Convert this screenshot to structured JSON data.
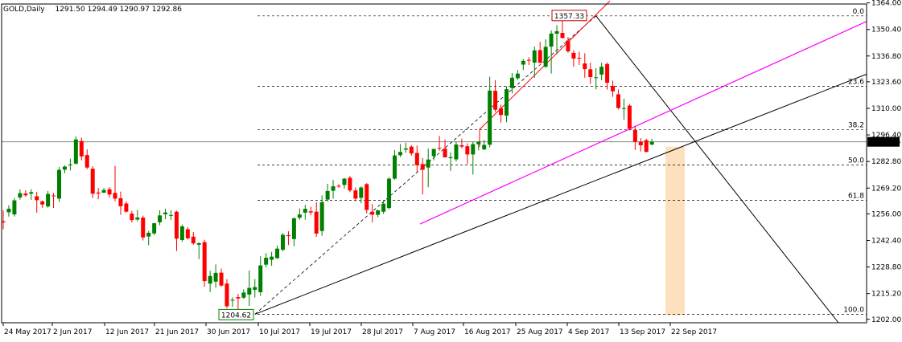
{
  "header": {
    "symbol": "GOLD,Daily",
    "ohlc": "1291.50 1294.49 1290.97 1292.86"
  },
  "colors": {
    "bull": "#008000",
    "bear": "#ff0000",
    "axis": "#000000",
    "grid": "#000000",
    "current_price_line": "#808080",
    "fib_channel": "#ff00ff",
    "trend_line": "#000000",
    "zone": "#fde0bd",
    "low_tag": "#008000",
    "high_tag": "#c00000"
  },
  "chart_data": {
    "type": "candlestick",
    "title": "GOLD,Daily",
    "ylim": [
      1198,
      1364
    ],
    "y_ticks": [
      "1364.00",
      "1350.40",
      "1336.80",
      "1323.60",
      "1310.00",
      "1296.40",
      "1282.80",
      "1269.20",
      "1256.00",
      "1242.40",
      "1228.80",
      "1215.20",
      "1202.00"
    ],
    "x_ticks": [
      "24 May 2017",
      "2 Jun 2017",
      "12 Jun 2017",
      "21 Jun 2017",
      "30 Jun 2017",
      "10 Jul 2017",
      "19 Jul 2017",
      "28 Jul 2017",
      "7 Aug 2017",
      "16 Aug 2017",
      "25 Aug 2017",
      "4 Sep 2017",
      "13 Sep 2017",
      "22 Sep 2017"
    ],
    "last_price": "1292.86",
    "swing_low": "1204.62",
    "swing_high": "1357.33",
    "fibonacci": {
      "levels": [
        {
          "label": "0.0",
          "price": 1357.33
        },
        {
          "label": "23.6",
          "price": 1321.29
        },
        {
          "label": "38.2",
          "price": 1299.03
        },
        {
          "label": "50.0",
          "price": 1280.98
        },
        {
          "label": "61.8",
          "price": 1262.93
        },
        {
          "label": "100.0",
          "price": 1204.62
        }
      ]
    },
    "candles": [
      {
        "o": 1252.2,
        "h": 1257.8,
        "l": 1248.1,
        "c": 1251.6
      },
      {
        "o": 1256.8,
        "h": 1260.4,
        "l": 1254.6,
        "c": 1258.6
      },
      {
        "o": 1255.7,
        "h": 1264.1,
        "l": 1254.6,
        "c": 1262.9
      },
      {
        "o": 1264.4,
        "h": 1268.5,
        "l": 1263.3,
        "c": 1266.6
      },
      {
        "o": 1266.4,
        "h": 1268.1,
        "l": 1264.7,
        "c": 1265.5
      },
      {
        "o": 1266.3,
        "h": 1268.6,
        "l": 1263.2,
        "c": 1267.1
      },
      {
        "o": 1265.0,
        "h": 1267.3,
        "l": 1256.6,
        "c": 1263.0
      },
      {
        "o": 1262.4,
        "h": 1262.9,
        "l": 1259.1,
        "c": 1260.8
      },
      {
        "o": 1259.8,
        "h": 1267.7,
        "l": 1259.2,
        "c": 1266.2
      },
      {
        "o": 1265.4,
        "h": 1266.7,
        "l": 1259.0,
        "c": 1265.2
      },
      {
        "o": 1263.8,
        "h": 1280.0,
        "l": 1262.0,
        "c": 1278.5
      },
      {
        "o": 1278.6,
        "h": 1280.8,
        "l": 1276.8,
        "c": 1280.2
      },
      {
        "o": 1280.8,
        "h": 1284.3,
        "l": 1278.2,
        "c": 1281.3
      },
      {
        "o": 1281.7,
        "h": 1295.6,
        "l": 1281.3,
        "c": 1294.1
      },
      {
        "o": 1293.3,
        "h": 1295.0,
        "l": 1283.4,
        "c": 1285.4
      },
      {
        "o": 1286.1,
        "h": 1289.1,
        "l": 1278.9,
        "c": 1279.7
      },
      {
        "o": 1279.1,
        "h": 1280.4,
        "l": 1264.1,
        "c": 1266.3
      },
      {
        "o": 1266.9,
        "h": 1269.2,
        "l": 1263.5,
        "c": 1266.4
      },
      {
        "o": 1266.8,
        "h": 1269.3,
        "l": 1266.8,
        "c": 1268.2
      },
      {
        "o": 1268.6,
        "h": 1269.7,
        "l": 1264.3,
        "c": 1265.9
      },
      {
        "o": 1266.7,
        "h": 1280.6,
        "l": 1262.4,
        "c": 1263.8
      },
      {
        "o": 1264.0,
        "h": 1267.4,
        "l": 1255.5,
        "c": 1259.9
      },
      {
        "o": 1261.3,
        "h": 1262.4,
        "l": 1256.7,
        "c": 1257.1
      },
      {
        "o": 1256.1,
        "h": 1257.5,
        "l": 1251.6,
        "c": 1252.8
      },
      {
        "o": 1253.1,
        "h": 1258.0,
        "l": 1252.2,
        "c": 1254.1
      },
      {
        "o": 1254.1,
        "h": 1255.1,
        "l": 1242.4,
        "c": 1243.9
      },
      {
        "o": 1244.4,
        "h": 1247.3,
        "l": 1239.9,
        "c": 1246.3
      },
      {
        "o": 1246.0,
        "h": 1251.4,
        "l": 1245.1,
        "c": 1251.2
      },
      {
        "o": 1251.7,
        "h": 1257.8,
        "l": 1250.2,
        "c": 1255.2
      },
      {
        "o": 1255.8,
        "h": 1258.6,
        "l": 1253.3,
        "c": 1256.7
      },
      {
        "o": 1255.1,
        "h": 1257.9,
        "l": 1252.9,
        "c": 1255.4
      },
      {
        "o": 1257.1,
        "h": 1257.6,
        "l": 1237.0,
        "c": 1243.3
      },
      {
        "o": 1242.6,
        "h": 1250.5,
        "l": 1241.7,
        "c": 1249.6
      },
      {
        "o": 1248.1,
        "h": 1249.2,
        "l": 1242.9,
        "c": 1243.5
      },
      {
        "o": 1244.3,
        "h": 1246.7,
        "l": 1240.2,
        "c": 1240.9
      },
      {
        "o": 1240.2,
        "h": 1241.4,
        "l": 1232.8,
        "c": 1241.0
      },
      {
        "o": 1241.5,
        "h": 1242.7,
        "l": 1218.7,
        "c": 1221.6
      },
      {
        "o": 1220.3,
        "h": 1226.9,
        "l": 1215.9,
        "c": 1224.2
      },
      {
        "o": 1221.3,
        "h": 1230.1,
        "l": 1218.2,
        "c": 1225.8
      },
      {
        "o": 1225.9,
        "h": 1228.0,
        "l": 1218.7,
        "c": 1219.3
      },
      {
        "o": 1220.3,
        "h": 1222.6,
        "l": 1207.6,
        "c": 1208.7
      },
      {
        "o": 1211.6,
        "h": 1213.3,
        "l": 1208.4,
        "c": 1212.0
      },
      {
        "o": 1213.4,
        "h": 1215.0,
        "l": 1204.6,
        "c": 1212.7
      },
      {
        "o": 1213.1,
        "h": 1217.4,
        "l": 1212.4,
        "c": 1215.7
      },
      {
        "o": 1214.7,
        "h": 1227.0,
        "l": 1208.9,
        "c": 1218.1
      },
      {
        "o": 1217.1,
        "h": 1222.6,
        "l": 1213.2,
        "c": 1218.5
      },
      {
        "o": 1215.9,
        "h": 1234.3,
        "l": 1213.9,
        "c": 1229.6
      },
      {
        "o": 1230.0,
        "h": 1235.9,
        "l": 1228.6,
        "c": 1233.5
      },
      {
        "o": 1232.5,
        "h": 1236.5,
        "l": 1229.4,
        "c": 1234.1
      },
      {
        "o": 1233.3,
        "h": 1239.8,
        "l": 1233.0,
        "c": 1238.2
      },
      {
        "o": 1237.6,
        "h": 1246.1,
        "l": 1236.9,
        "c": 1245.3
      },
      {
        "o": 1245.1,
        "h": 1247.1,
        "l": 1240.0,
        "c": 1244.6
      },
      {
        "o": 1243.1,
        "h": 1254.3,
        "l": 1239.4,
        "c": 1253.7
      },
      {
        "o": 1254.0,
        "h": 1258.7,
        "l": 1253.1,
        "c": 1255.7
      },
      {
        "o": 1256.6,
        "h": 1260.6,
        "l": 1253.0,
        "c": 1258.6
      },
      {
        "o": 1257.3,
        "h": 1259.7,
        "l": 1255.3,
        "c": 1256.7
      },
      {
        "o": 1257.1,
        "h": 1262.0,
        "l": 1244.2,
        "c": 1245.9
      },
      {
        "o": 1247.2,
        "h": 1265.5,
        "l": 1244.8,
        "c": 1262.0
      },
      {
        "o": 1263.3,
        "h": 1271.4,
        "l": 1262.3,
        "c": 1267.7
      },
      {
        "o": 1267.8,
        "h": 1273.4,
        "l": 1263.8,
        "c": 1270.1
      },
      {
        "o": 1270.4,
        "h": 1271.2,
        "l": 1269.3,
        "c": 1270.3
      },
      {
        "o": 1270.8,
        "h": 1274.4,
        "l": 1268.9,
        "c": 1274.0
      },
      {
        "o": 1274.5,
        "h": 1275.4,
        "l": 1267.1,
        "c": 1268.0
      },
      {
        "o": 1268.0,
        "h": 1269.5,
        "l": 1262.4,
        "c": 1263.8
      },
      {
        "o": 1264.2,
        "h": 1270.1,
        "l": 1261.4,
        "c": 1269.5
      },
      {
        "o": 1271.2,
        "h": 1271.7,
        "l": 1256.2,
        "c": 1258.0
      },
      {
        "o": 1257.1,
        "h": 1261.0,
        "l": 1251.6,
        "c": 1255.6
      },
      {
        "o": 1255.5,
        "h": 1258.1,
        "l": 1254.3,
        "c": 1257.8
      },
      {
        "o": 1257.1,
        "h": 1262.4,
        "l": 1256.0,
        "c": 1261.2
      },
      {
        "o": 1259.0,
        "h": 1274.8,
        "l": 1258.3,
        "c": 1274.0
      },
      {
        "o": 1274.0,
        "h": 1288.6,
        "l": 1273.5,
        "c": 1285.9
      },
      {
        "o": 1286.0,
        "h": 1291.7,
        "l": 1285.1,
        "c": 1287.7
      },
      {
        "o": 1288.9,
        "h": 1292.4,
        "l": 1287.3,
        "c": 1289.5
      },
      {
        "o": 1290.4,
        "h": 1291.2,
        "l": 1285.8,
        "c": 1286.9
      },
      {
        "o": 1287.2,
        "h": 1291.0,
        "l": 1277.6,
        "c": 1280.9
      },
      {
        "o": 1281.5,
        "h": 1284.6,
        "l": 1265.9,
        "c": 1278.6
      },
      {
        "o": 1279.7,
        "h": 1289.4,
        "l": 1269.6,
        "c": 1283.8
      },
      {
        "o": 1285.5,
        "h": 1289.5,
        "l": 1283.4,
        "c": 1289.2
      },
      {
        "o": 1289.8,
        "h": 1295.9,
        "l": 1288.3,
        "c": 1289.4
      },
      {
        "o": 1289.4,
        "h": 1294.0,
        "l": 1286.1,
        "c": 1284.9
      },
      {
        "o": 1284.5,
        "h": 1287.5,
        "l": 1278.0,
        "c": 1285.0
      },
      {
        "o": 1283.9,
        "h": 1292.8,
        "l": 1282.8,
        "c": 1291.5
      },
      {
        "o": 1291.1,
        "h": 1294.5,
        "l": 1289.6,
        "c": 1290.4
      },
      {
        "o": 1290.6,
        "h": 1292.1,
        "l": 1281.5,
        "c": 1286.4
      },
      {
        "o": 1286.4,
        "h": 1292.9,
        "l": 1276.1,
        "c": 1291.7
      },
      {
        "o": 1291.6,
        "h": 1293.2,
        "l": 1288.5,
        "c": 1292.9
      },
      {
        "o": 1289.0,
        "h": 1293.9,
        "l": 1288.6,
        "c": 1291.3
      },
      {
        "o": 1291.4,
        "h": 1326.2,
        "l": 1290.1,
        "c": 1319.1
      },
      {
        "o": 1319.0,
        "h": 1324.4,
        "l": 1308.1,
        "c": 1309.3
      },
      {
        "o": 1310.0,
        "h": 1311.9,
        "l": 1302.7,
        "c": 1306.6
      },
      {
        "o": 1306.3,
        "h": 1321.3,
        "l": 1302.9,
        "c": 1319.8
      },
      {
        "o": 1320.4,
        "h": 1328.1,
        "l": 1317.7,
        "c": 1325.7
      },
      {
        "o": 1325.4,
        "h": 1329.7,
        "l": 1324.6,
        "c": 1327.8
      },
      {
        "o": 1332.4,
        "h": 1335.2,
        "l": 1329.6,
        "c": 1334.3
      },
      {
        "o": 1334.8,
        "h": 1336.2,
        "l": 1332.2,
        "c": 1334.5
      },
      {
        "o": 1333.4,
        "h": 1341.7,
        "l": 1325.6,
        "c": 1339.7
      },
      {
        "o": 1339.8,
        "h": 1344.0,
        "l": 1333.2,
        "c": 1333.3
      },
      {
        "o": 1331.3,
        "h": 1345.3,
        "l": 1330.7,
        "c": 1341.5
      },
      {
        "o": 1341.6,
        "h": 1349.9,
        "l": 1327.8,
        "c": 1348.3
      },
      {
        "o": 1348.2,
        "h": 1352.6,
        "l": 1337.8,
        "c": 1349.5
      },
      {
        "o": 1348.6,
        "h": 1357.3,
        "l": 1345.8,
        "c": 1346.0
      },
      {
        "o": 1344.7,
        "h": 1346.5,
        "l": 1338.5,
        "c": 1339.2
      },
      {
        "o": 1338.4,
        "h": 1339.8,
        "l": 1331.3,
        "c": 1335.5
      },
      {
        "o": 1335.9,
        "h": 1339.0,
        "l": 1332.2,
        "c": 1335.7
      },
      {
        "o": 1333.0,
        "h": 1338.2,
        "l": 1325.7,
        "c": 1330.1
      },
      {
        "o": 1330.0,
        "h": 1333.4,
        "l": 1322.5,
        "c": 1326.0
      },
      {
        "o": 1325.6,
        "h": 1330.6,
        "l": 1319.7,
        "c": 1325.9
      },
      {
        "o": 1327.3,
        "h": 1333.4,
        "l": 1324.4,
        "c": 1331.3
      },
      {
        "o": 1332.7,
        "h": 1333.5,
        "l": 1319.6,
        "c": 1323.1
      },
      {
        "o": 1321.5,
        "h": 1324.2,
        "l": 1315.9,
        "c": 1318.7
      },
      {
        "o": 1317.2,
        "h": 1319.7,
        "l": 1309.4,
        "c": 1310.2
      },
      {
        "o": 1310.1,
        "h": 1314.9,
        "l": 1304.2,
        "c": 1310.1
      },
      {
        "o": 1311.4,
        "h": 1312.2,
        "l": 1298.7,
        "c": 1299.6
      },
      {
        "o": 1299.0,
        "h": 1300.7,
        "l": 1288.7,
        "c": 1292.8
      },
      {
        "o": 1292.9,
        "h": 1294.7,
        "l": 1287.9,
        "c": 1291.1
      },
      {
        "o": 1293.7,
        "h": 1294.4,
        "l": 1287.5,
        "c": 1287.7
      },
      {
        "o": 1291.5,
        "h": 1294.5,
        "l": 1291.0,
        "c": 1292.9
      }
    ]
  }
}
